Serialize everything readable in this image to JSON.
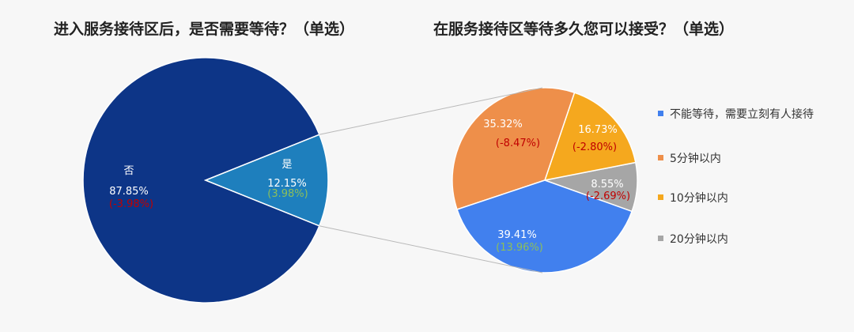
{
  "titles": {
    "left": "进入服务接待区后，是否需要等待？（单选）",
    "right": "在服务接待区等待多久您可以接受？（单选）"
  },
  "colors": {
    "positive_change": "#8cbf5a",
    "negative_change": "#c00000",
    "connector": "#b9b9b9"
  },
  "chart_data": [
    {
      "type": "pie",
      "title": "进入服务接待区后，是否需要等待？（单选）",
      "slices": [
        {
          "label": "否",
          "value": 87.85,
          "value_label": "87.85%",
          "change_label": "(-3.98%)",
          "change_sign": "negative",
          "color": "#0d3587"
        },
        {
          "label": "是",
          "value": 12.15,
          "value_label": "12.15%",
          "change_label": "(3.98%)",
          "change_sign": "positive",
          "color": "#1e7fbd"
        }
      ]
    },
    {
      "type": "pie",
      "title": "在服务接待区等待多久您可以接受？（单选）",
      "legend_position": "right",
      "slices": [
        {
          "label": "不能等待，需要立刻有人接待",
          "value": 39.41,
          "value_label": "39.41%",
          "change_label": "(13.96%)",
          "change_sign": "positive",
          "color": "#4180ee"
        },
        {
          "label": "5分钟以内",
          "value": 35.32,
          "value_label": "35.32%",
          "change_label": "(-8.47%)",
          "change_sign": "negative",
          "color": "#ee8f4a"
        },
        {
          "label": "10分钟以内",
          "value": 16.73,
          "value_label": "16.73%",
          "change_label": "(-2.80%)",
          "change_sign": "negative",
          "color": "#f5a81e"
        },
        {
          "label": "20分钟以内",
          "value": 8.55,
          "value_label": "8.55%",
          "change_label": "(-2.69%)",
          "change_sign": "negative",
          "color": "#a6a6a6"
        }
      ]
    }
  ]
}
